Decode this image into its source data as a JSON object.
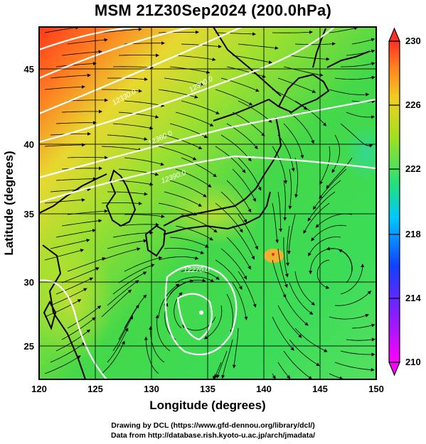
{
  "title": "MSM 21Z30Sep2024 (200.0hPa)",
  "map": {
    "x_axis": {
      "label": "Longitude (degrees)",
      "ticks": [
        "120",
        "125",
        "130",
        "135",
        "140",
        "145",
        "150"
      ]
    },
    "y_axis": {
      "label": "Latitude  (degrees)",
      "ticks": [
        "25",
        "30",
        "35",
        "40",
        "45"
      ]
    },
    "lon_range": [
      120,
      150
    ],
    "lat_range": [
      22.4,
      47.6
    ],
    "contour_labels": [
      "12330.0",
      "12300.0",
      "12360.0",
      "12390.0",
      "12270.0",
      "12300.0",
      "12360.0"
    ],
    "vortices": [
      {
        "name": "typhoon-center",
        "lon": 134.6,
        "lat": 27.7
      },
      {
        "name": "east-anticyclone",
        "lon": 145.8,
        "lat": 29.9
      }
    ]
  },
  "colorbar": {
    "ticks": [
      "230",
      "226",
      "222",
      "218",
      "214",
      "210"
    ],
    "colors": [
      "#ff00ff",
      "#3050ff",
      "#00d8ff",
      "#30e060",
      "#a8e020",
      "#f0c020",
      "#ff4020"
    ]
  },
  "credit": {
    "line1": "Drawing by DCL (https://www.gfd-dennou.org/library/dcl/)",
    "line2": "Data from http://database.rish.kyoto-u.ac.jp/arch/jmadata/"
  }
}
